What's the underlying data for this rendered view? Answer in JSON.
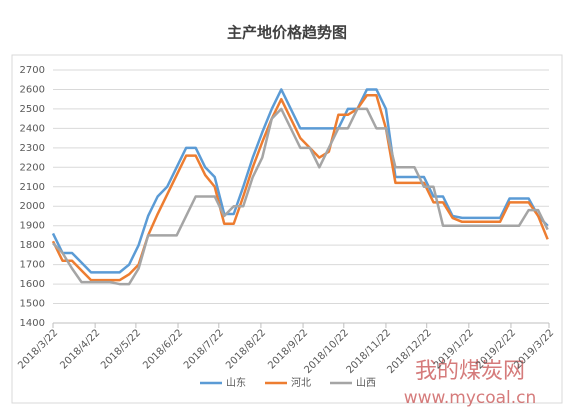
{
  "chart_data": {
    "type": "line",
    "title": "主产地价格趋势图",
    "x": [
      "2018/3/22",
      "2018/3/29",
      "2018/4/5",
      "2018/4/12",
      "2018/4/19",
      "2018/4/26",
      "2018/5/3",
      "2018/5/10",
      "2018/5/17",
      "2018/5/24",
      "2018/5/31",
      "2018/6/7",
      "2018/6/14",
      "2018/6/21",
      "2018/6/28",
      "2018/7/5",
      "2018/7/12",
      "2018/7/19",
      "2018/7/26",
      "2018/8/2",
      "2018/8/9",
      "2018/8/16",
      "2018/8/23",
      "2018/8/30",
      "2018/9/6",
      "2018/9/13",
      "2018/9/20",
      "2018/9/27",
      "2018/10/4",
      "2018/10/11",
      "2018/10/18",
      "2018/10/25",
      "2018/11/1",
      "2018/11/8",
      "2018/11/15",
      "2018/11/22",
      "2018/11/29",
      "2018/12/6",
      "2018/12/13",
      "2018/12/20",
      "2018/12/27",
      "2019/1/3",
      "2019/1/10",
      "2019/1/17",
      "2019/1/24",
      "2019/1/31",
      "2019/2/7",
      "2019/2/14",
      "2019/2/21",
      "2019/2/28",
      "2019/3/7",
      "2019/3/14",
      "2019/3/21"
    ],
    "series": [
      {
        "name": "山东",
        "color": "#5b9bd5",
        "values": [
          1860,
          1760,
          1760,
          1710,
          1660,
          1660,
          1660,
          1660,
          1700,
          1800,
          1950,
          2050,
          2100,
          2200,
          2300,
          2300,
          2200,
          2150,
          1960,
          1960,
          2100,
          2250,
          2380,
          2500,
          2600,
          2500,
          2400,
          2400,
          2400,
          2400,
          2400,
          2500,
          2500,
          2600,
          2600,
          2500,
          2150,
          2150,
          2150,
          2150,
          2050,
          2050,
          1950,
          1940,
          1940,
          1940,
          1940,
          1940,
          2040,
          2040,
          2040,
          1950,
          1900
        ]
      },
      {
        "name": "河北",
        "color": "#ed7d31",
        "values": [
          1820,
          1720,
          1720,
          1670,
          1620,
          1620,
          1620,
          1620,
          1650,
          1700,
          1850,
          1960,
          2060,
          2160,
          2260,
          2260,
          2160,
          2100,
          1910,
          1910,
          2050,
          2200,
          2330,
          2450,
          2550,
          2450,
          2350,
          2300,
          2250,
          2280,
          2470,
          2470,
          2500,
          2570,
          2570,
          2400,
          2120,
          2120,
          2120,
          2120,
          2020,
          2020,
          1940,
          1920,
          1920,
          1920,
          1920,
          1920,
          2020,
          2020,
          2020,
          1950,
          1830
        ]
      },
      {
        "name": "山西",
        "color": "#a5a5a5",
        "values": [
          1810,
          1760,
          1680,
          1610,
          1610,
          1610,
          1610,
          1600,
          1600,
          1680,
          1850,
          1850,
          1850,
          1850,
          1950,
          2050,
          2050,
          2050,
          1950,
          2000,
          2000,
          2150,
          2250,
          2450,
          2500,
          2400,
          2300,
          2300,
          2200,
          2300,
          2400,
          2400,
          2500,
          2500,
          2400,
          2400,
          2200,
          2200,
          2200,
          2100,
          2100,
          1900,
          1900,
          1900,
          1900,
          1900,
          1900,
          1900,
          1900,
          1900,
          1980,
          1980,
          1880
        ]
      }
    ],
    "xlim": [
      "2018/3/22",
      "2019/3/22"
    ],
    "xticks": [
      "2018/3/22",
      "2018/4/22",
      "2018/5/22",
      "2018/6/22",
      "2018/7/22",
      "2018/8/22",
      "2018/9/22",
      "2018/10/22",
      "2018/11/22",
      "2018/12/22",
      "2019/1/22",
      "2019/2/22",
      "2019/3/22"
    ],
    "ylim": [
      1400,
      2700
    ],
    "yticks": [
      1400,
      1500,
      1600,
      1700,
      1800,
      1900,
      2000,
      2100,
      2200,
      2300,
      2400,
      2500,
      2600,
      2700
    ],
    "grid": true,
    "legend": "bottom"
  },
  "watermark": {
    "title": "我的煤炭网",
    "url": "www.mycoal.cn"
  }
}
